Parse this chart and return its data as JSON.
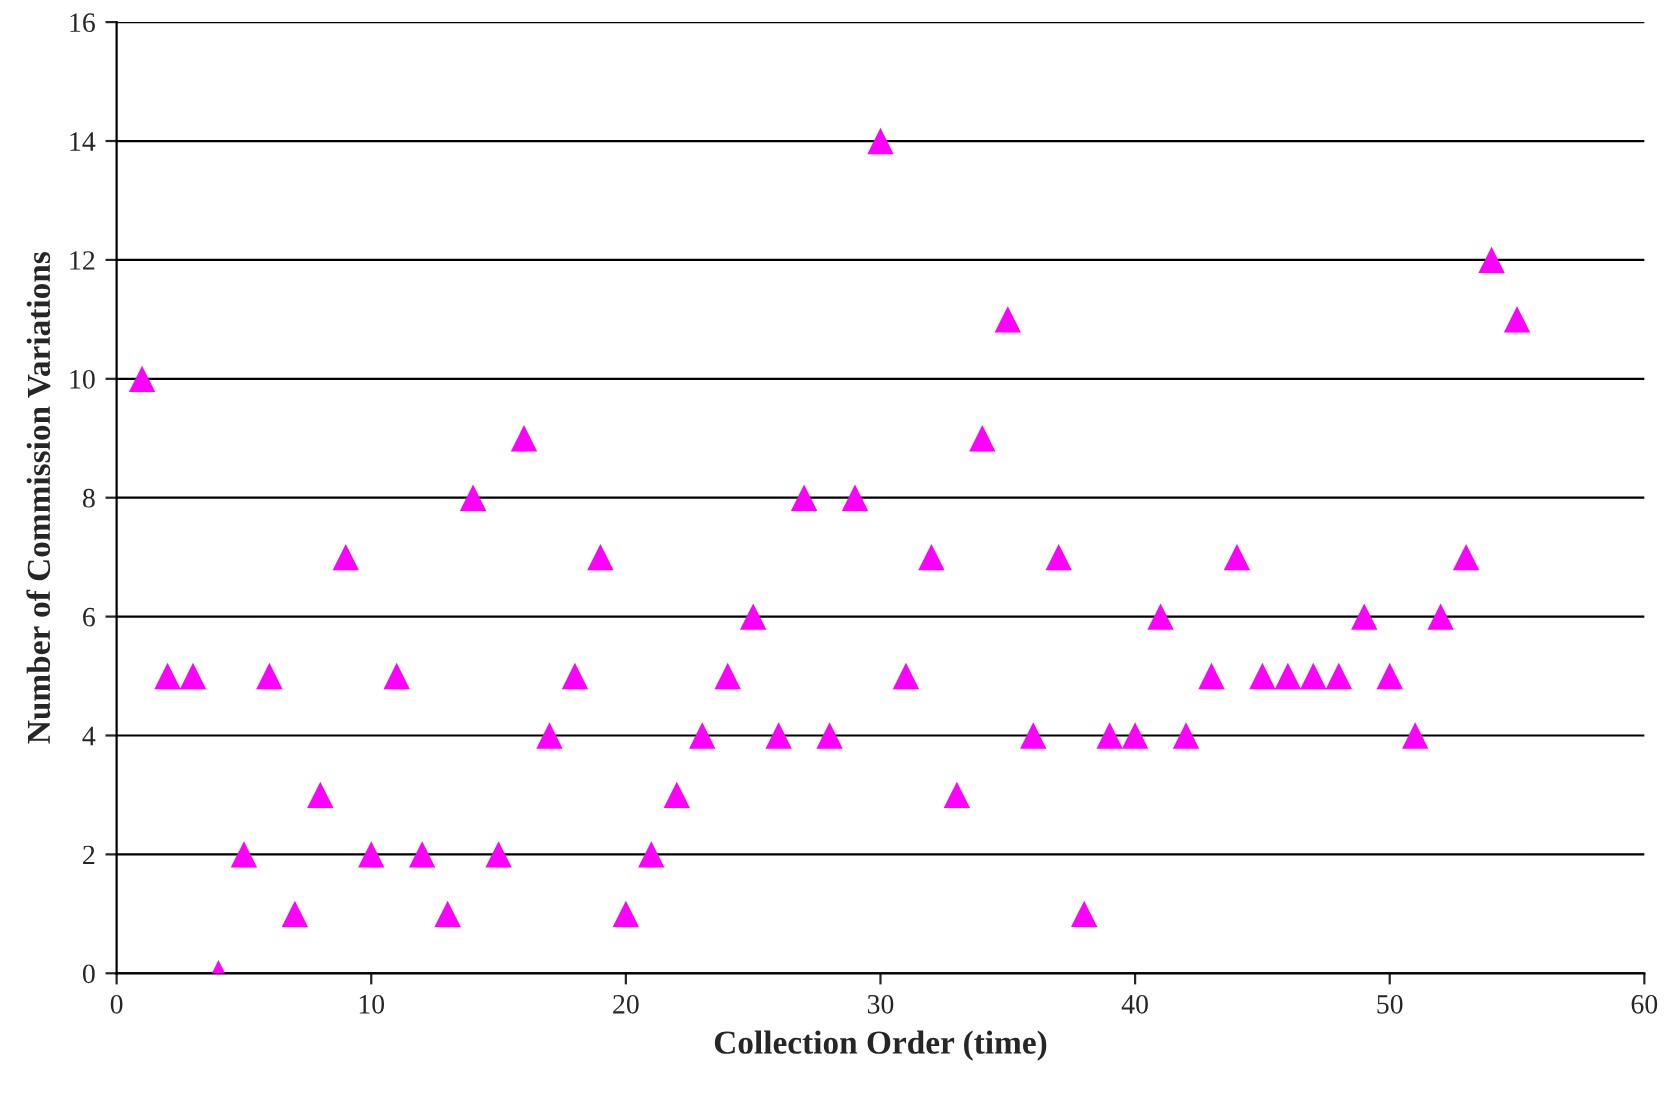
{
  "chart_data": {
    "type": "scatter",
    "xlabel": "Collection Order (time)",
    "ylabel": "Number of Commission Variations",
    "x": [
      1,
      2,
      3,
      4,
      5,
      6,
      7,
      8,
      9,
      10,
      11,
      12,
      13,
      14,
      15,
      16,
      17,
      18,
      19,
      20,
      21,
      22,
      23,
      24,
      25,
      26,
      27,
      28,
      29,
      30,
      31,
      32,
      33,
      34,
      35,
      36,
      37,
      38,
      39,
      40,
      41,
      42,
      43,
      44,
      45,
      46,
      47,
      48,
      49,
      50,
      51,
      52,
      53,
      54,
      55
    ],
    "series": [
      {
        "color": "#ff00ff",
        "values": [
          10,
          5,
          5,
          0,
          2,
          5,
          1,
          3,
          7,
          2,
          5,
          2,
          1,
          8,
          2,
          9,
          4,
          5,
          7,
          1,
          2,
          3,
          4,
          5,
          6,
          4,
          8,
          4,
          8,
          14,
          5,
          7,
          3,
          9,
          11,
          4,
          7,
          1,
          4,
          4,
          6,
          4,
          5,
          7,
          5,
          5,
          5,
          5,
          6,
          5,
          4,
          6,
          7,
          12,
          11
        ]
      }
    ],
    "xlim": [
      0,
      60
    ],
    "xticks": [
      0,
      10,
      20,
      30,
      40,
      50,
      60
    ],
    "ylim": [
      0,
      16
    ],
    "yticks": [
      0,
      2,
      4,
      6,
      8,
      10,
      12,
      14,
      16
    ],
    "grid": "y",
    "marker": "triangle",
    "legend": false
  }
}
